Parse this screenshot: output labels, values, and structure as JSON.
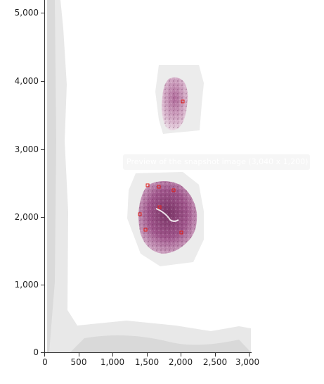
{
  "viewer": {
    "x_ticks": [
      "0",
      "500",
      "1,000",
      "1,500",
      "2,000",
      "2,500",
      "3,000"
    ],
    "y_ticks": [
      "0",
      "1,000",
      "2,000",
      "3,000",
      "4,000",
      "5,000"
    ],
    "tooltip": "Preview of the snapshot image (3,040 x 1,200)",
    "colors": {
      "tissue_stain": "#a05a8a",
      "marker": "#e0201a",
      "background_scan": "#e6e6e6"
    }
  }
}
